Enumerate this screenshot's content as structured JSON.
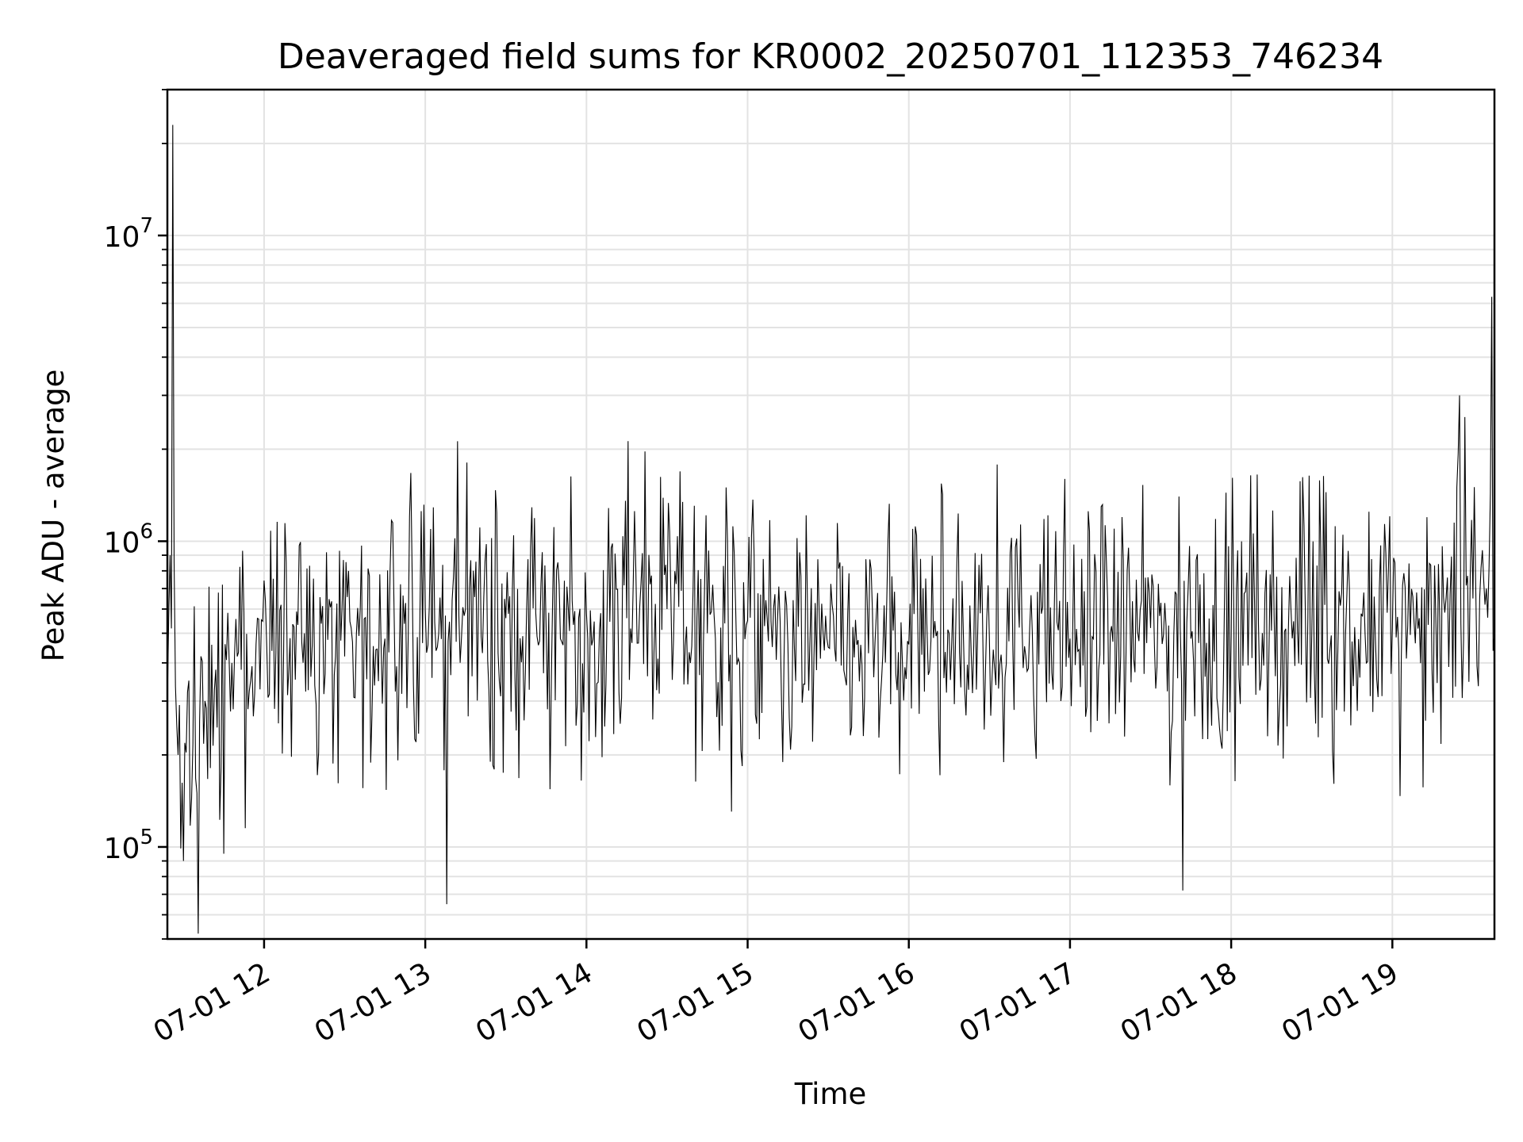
{
  "chart_data": {
    "type": "line",
    "title": "Deaveraged field sums for KR0002_20250701_112353_746234",
    "xlabel": "Time",
    "ylabel": "Peak ADU - average",
    "x_range": [
      "2025-07-01T11:24",
      "2025-07-01T19:38"
    ],
    "ylim": [
      50000,
      30000000
    ],
    "yscale": "log",
    "grid": true,
    "x_ticks": [
      "07-01 12",
      "07-01 13",
      "07-01 14",
      "07-01 15",
      "07-01 16",
      "07-01 17",
      "07-01 18",
      "07-01 19"
    ],
    "y_ticks": [
      {
        "base": "10",
        "exp": "5"
      },
      {
        "base": "10",
        "exp": "6"
      },
      {
        "base": "10",
        "exp": "7"
      }
    ],
    "line_color": "#000000",
    "series": [
      {
        "x": [
          "2025-07-01T11:24",
          "2025-07-01T11:25",
          "2025-07-01T11:26",
          "2025-07-01T11:28",
          "2025-07-01T11:30",
          "2025-07-01T11:32",
          "2025-07-01T11:35",
          "2025-07-01T11:38",
          "2025-07-01T11:42",
          "2025-07-01T11:45",
          "2025-07-01T11:48",
          "2025-07-01T11:50",
          "2025-07-01T11:55",
          "2025-07-01T12:01",
          "2025-07-01T12:15",
          "2025-07-01T12:30",
          "2025-07-01T12:45",
          "2025-07-01T12:58",
          "2025-07-01T13:05",
          "2025-07-01T13:08",
          "2025-07-01T13:15",
          "2025-07-01T13:30",
          "2025-07-01T13:45",
          "2025-07-01T14:00",
          "2025-07-01T14:15",
          "2025-07-01T14:30",
          "2025-07-01T14:45",
          "2025-07-01T14:52",
          "2025-07-01T15:00",
          "2025-07-01T15:15",
          "2025-07-01T15:30",
          "2025-07-01T15:45",
          "2025-07-01T16:00",
          "2025-07-01T16:15",
          "2025-07-01T16:30",
          "2025-07-01T16:45",
          "2025-07-01T17:00",
          "2025-07-01T17:15",
          "2025-07-01T17:30",
          "2025-07-01T17:42",
          "2025-07-01T17:45",
          "2025-07-01T18:00",
          "2025-07-01T18:15",
          "2025-07-01T18:30",
          "2025-07-01T18:45",
          "2025-07-01T19:00",
          "2025-07-01T19:10",
          "2025-07-01T19:20",
          "2025-07-01T19:25",
          "2025-07-01T19:30",
          "2025-07-01T19:35",
          "2025-07-01T19:37",
          "2025-07-01T19:38"
        ],
        "y": [
          300000,
          900000,
          23000000,
          200000,
          90000,
          350000,
          150000,
          300000,
          380000,
          95000,
          400000,
          420000,
          350000,
          450000,
          500000,
          420000,
          480000,
          550000,
          500000,
          65000,
          600000,
          560000,
          520000,
          580000,
          560000,
          600000,
          500000,
          1500000,
          550000,
          460000,
          450000,
          430000,
          460000,
          500000,
          480000,
          520000,
          480000,
          500000,
          520000,
          72000,
          480000,
          500000,
          510000,
          490000,
          470000,
          520000,
          560000,
          650000,
          3000000,
          650000,
          700000,
          6300000,
          500000
        ]
      }
    ]
  }
}
